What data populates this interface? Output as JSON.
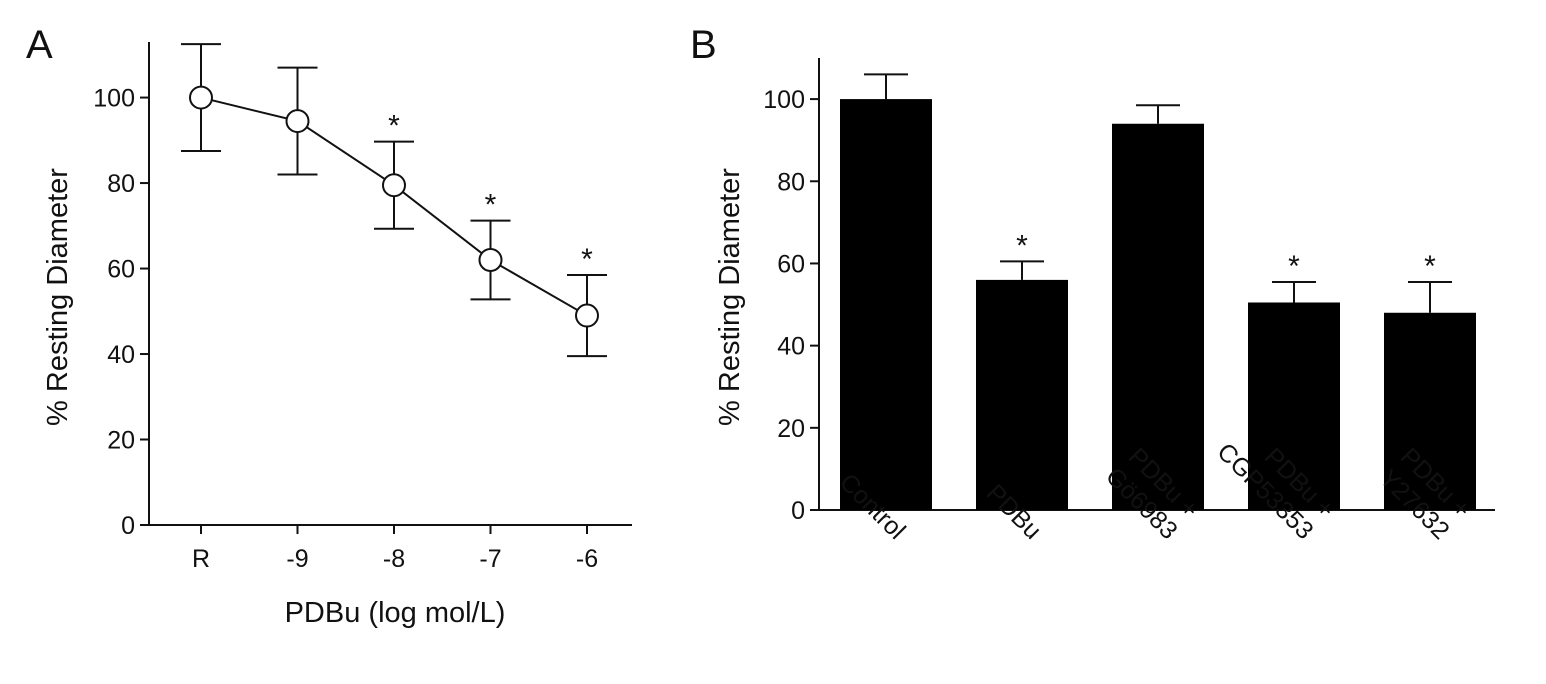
{
  "chart_data": [
    {
      "panel": "A",
      "type": "line",
      "xlabel": "PDBu (log mol/L)",
      "ylabel": "% Resting Diameter",
      "ylim": [
        0,
        113
      ],
      "yticks": [
        0,
        20,
        40,
        60,
        80,
        100
      ],
      "categories": [
        "R",
        "-9",
        "-8",
        "-7",
        "-6"
      ],
      "series": [
        {
          "values": [
            100,
            94.5,
            79.5,
            62,
            49
          ],
          "error": [
            12.5,
            12.5,
            10.2,
            9.2,
            9.5
          ],
          "significant": [
            false,
            false,
            true,
            true,
            true
          ]
        }
      ],
      "annotation": "*",
      "marker": "open-circle",
      "grid": false
    },
    {
      "panel": "B",
      "type": "bar",
      "ylabel": "% Resting Diameter",
      "ylim": [
        0,
        110
      ],
      "yticks": [
        0,
        20,
        40,
        60,
        80,
        100
      ],
      "categories": [
        "Control",
        "PDBu",
        "PDBu +\nGö6983",
        "PDBu +\nCGP53353",
        "PDBu +\nY27632"
      ],
      "values": [
        100,
        56,
        94,
        50.5,
        48
      ],
      "error": [
        6,
        4.5,
        4.5,
        5,
        7.5
      ],
      "significant": [
        false,
        true,
        false,
        true,
        true
      ],
      "annotation": "*",
      "bar_color": "#000000",
      "grid": false
    }
  ]
}
